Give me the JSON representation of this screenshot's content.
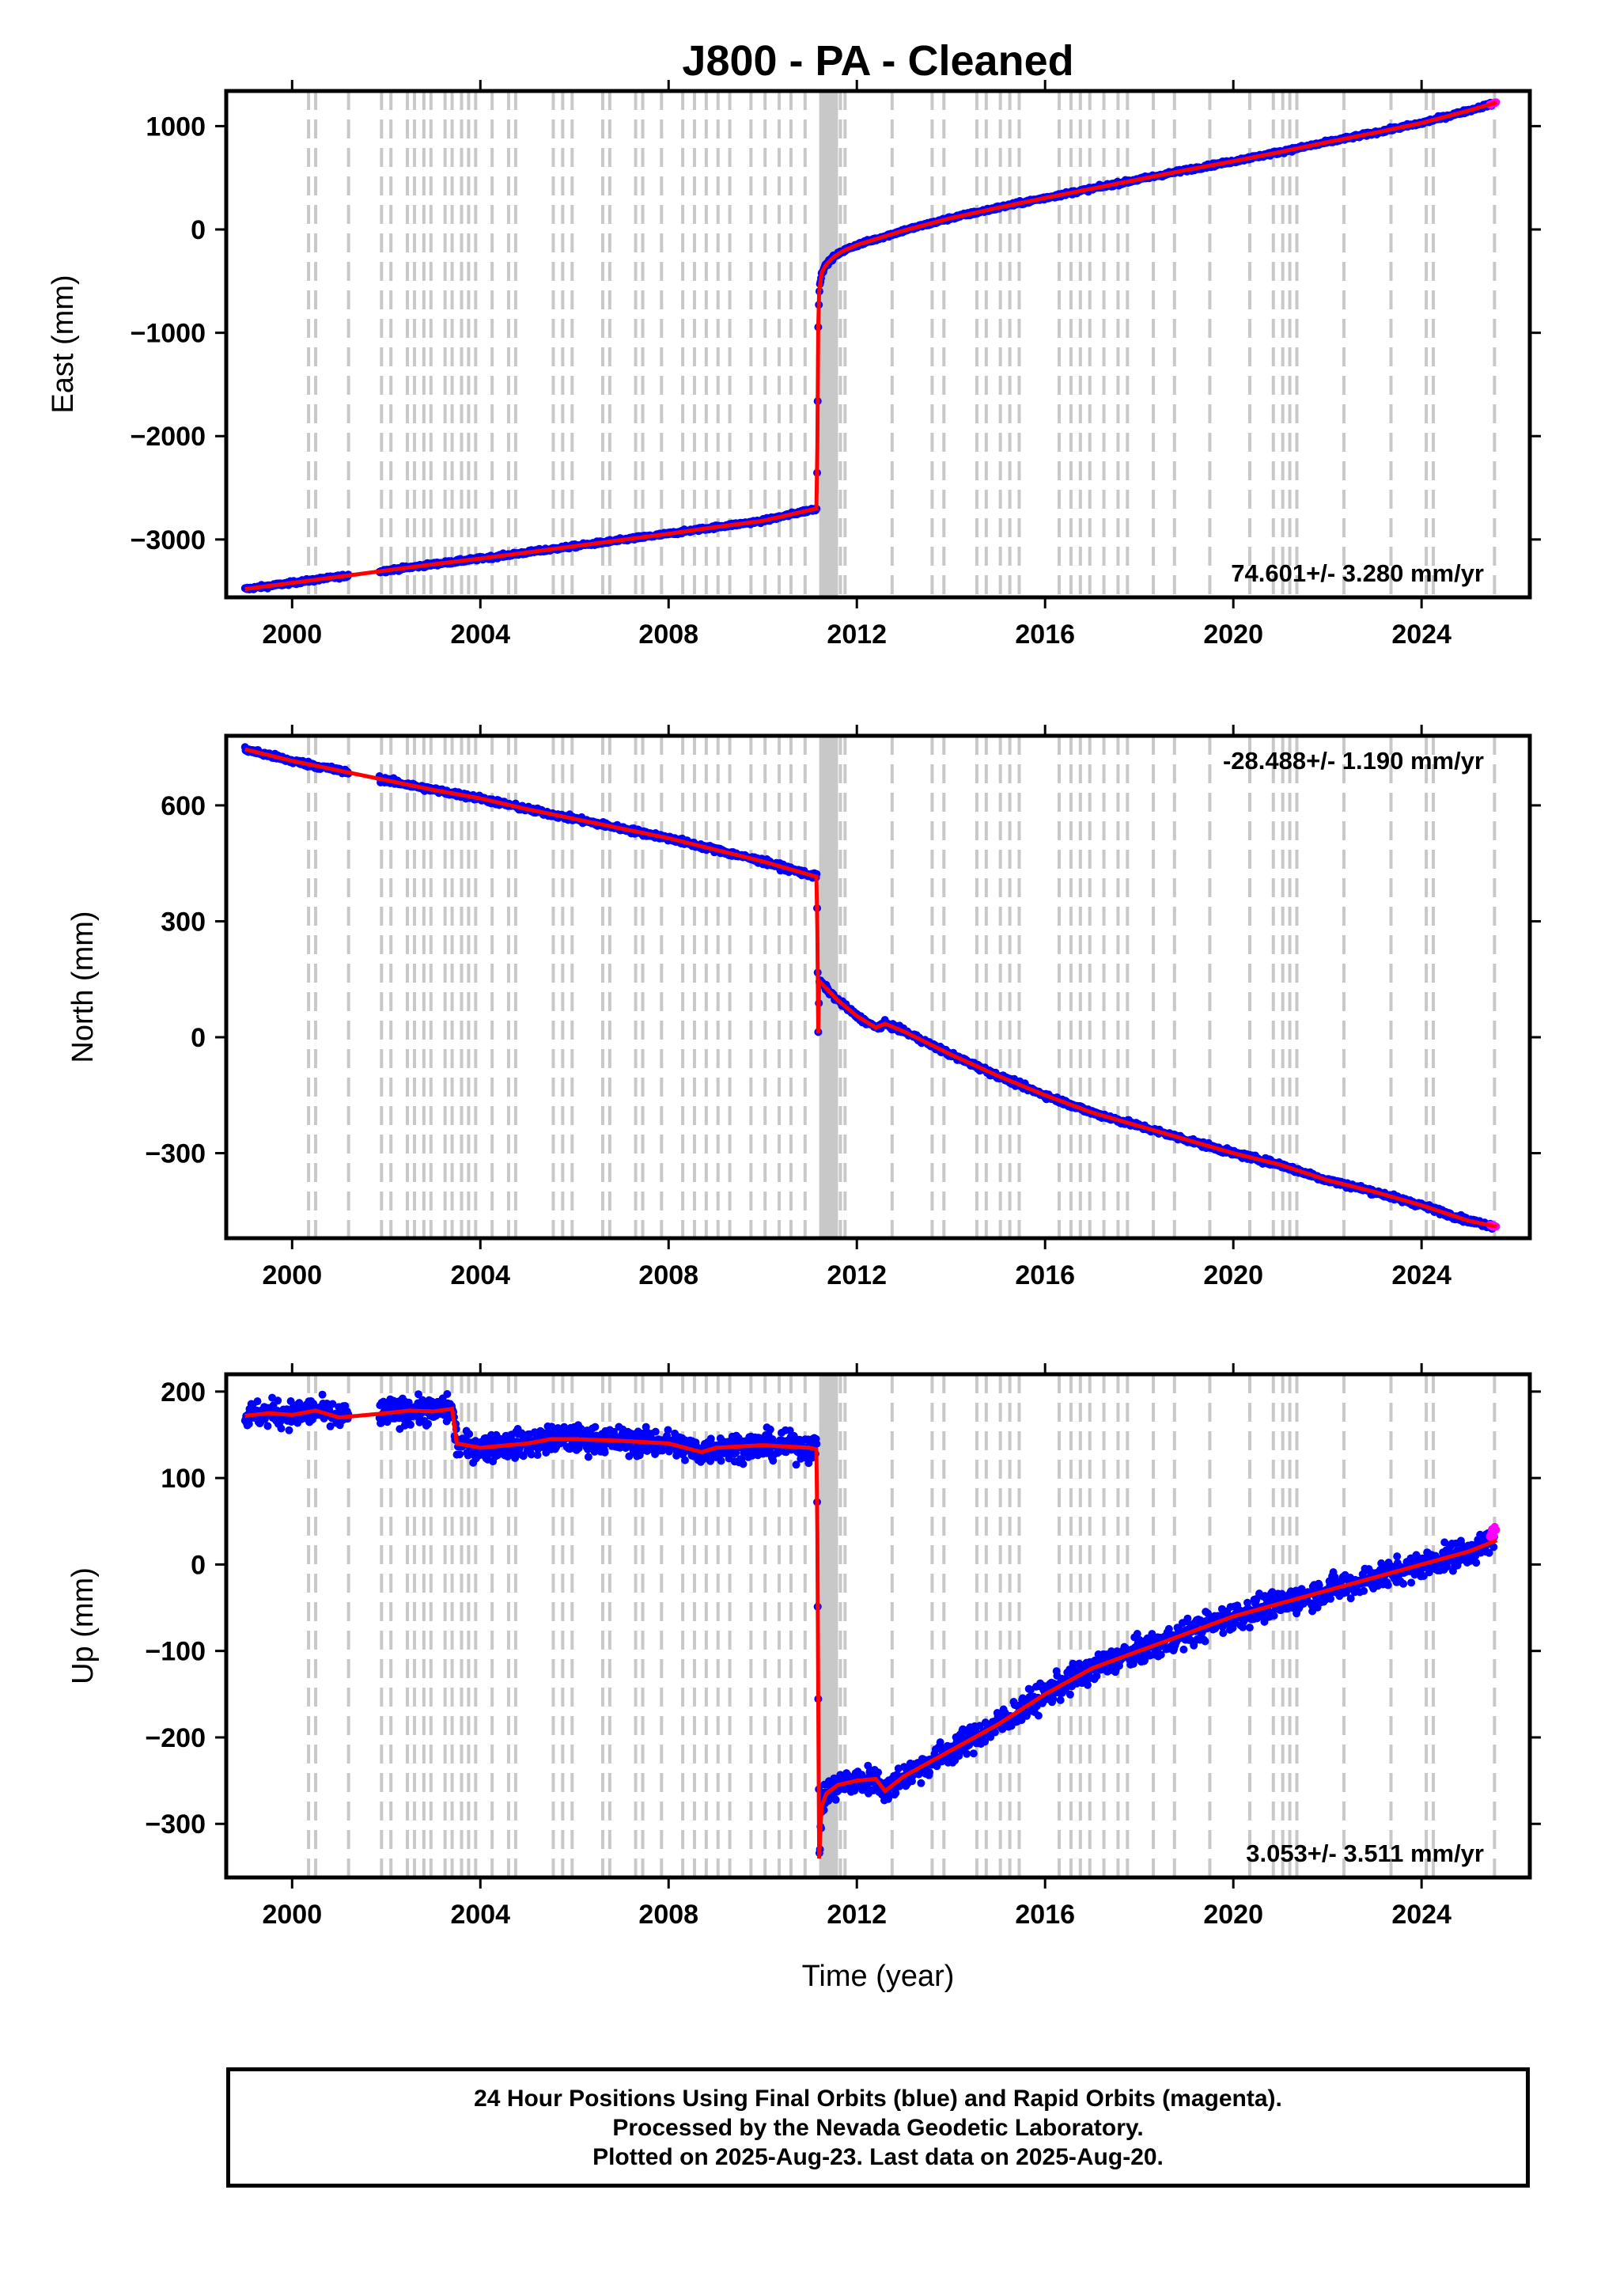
{
  "title": "J800  - PA - Cleaned",
  "xlabel": "Time (year)",
  "colors": {
    "final": "#0000ff",
    "rapid": "#ff00ff",
    "model": "#ff0000",
    "steps": "#c8c8c8"
  },
  "footer": {
    "line1": "24 Hour Positions Using Final Orbits (blue) and Rapid Orbits (magenta).",
    "line2": "Processed by the Nevada Geodetic Laboratory.",
    "line3": "Plotted on 2025-Aug-23. Last data on 2025-Aug-20."
  },
  "chart_data": [
    {
      "type": "scatter",
      "panel": "east",
      "ylabel": "East (mm)",
      "xlim": [
        1998.6,
        2026.3
      ],
      "ylim": [
        -3560,
        1340
      ],
      "x_ticks": [
        2000,
        2004,
        2008,
        2012,
        2016,
        2020,
        2024
      ],
      "y_ticks": [
        1000,
        0,
        -1000,
        -2000,
        -3000
      ],
      "y_tick_labels": [
        "1000",
        "0",
        "−1000",
        "−2000",
        "−3000"
      ],
      "rate": "74.601+/- 3.280 mm/yr",
      "rate_position": "bottom-right",
      "series": [
        {
          "x": [
            1999.0,
            2000.0,
            2001.0,
            2002.0,
            2003.0,
            2004.0,
            2005.0,
            2006.0,
            2007.0,
            2008.0,
            2009.0,
            2010.0,
            2011.15,
            2011.18,
            2011.2,
            2011.25,
            2011.35,
            2011.5,
            2011.7,
            2012.0,
            2012.5,
            2013.0,
            2014.0,
            2015.0,
            2016.0,
            2017.0,
            2018.0,
            2019.0,
            2020.0,
            2021.0,
            2022.0,
            2023.0,
            2024.0,
            2025.0,
            2025.6
          ],
          "y": [
            -3480,
            -3420,
            -3360,
            -3300,
            -3240,
            -3185,
            -3125,
            -3065,
            -3005,
            -2945,
            -2880,
            -2820,
            -2700,
            -950,
            -600,
            -420,
            -340,
            -270,
            -210,
            -150,
            -80,
            -10,
            110,
            210,
            305,
            395,
            485,
            575,
            660,
            750,
            845,
            935,
            1030,
            1150,
            1230
          ]
        }
      ]
    },
    {
      "type": "scatter",
      "panel": "north",
      "ylabel": "North (mm)",
      "xlim": [
        1998.6,
        2026.3
      ],
      "ylim": [
        -520,
        780
      ],
      "x_ticks": [
        2000,
        2004,
        2008,
        2012,
        2016,
        2020,
        2024
      ],
      "y_ticks": [
        600,
        300,
        0,
        -300
      ],
      "y_tick_labels": [
        "600",
        "300",
        "0",
        "−300"
      ],
      "rate": "-28.488+/- 1.190 mm/yr",
      "rate_position": "top-right",
      "series": [
        {
          "x": [
            1999.0,
            2000.0,
            2001.0,
            2002.0,
            2003.0,
            2004.0,
            2005.0,
            2006.0,
            2007.0,
            2008.0,
            2009.0,
            2010.0,
            2011.15,
            2011.18,
            2011.2,
            2011.25,
            2011.4,
            2011.6,
            2012.0,
            2012.4,
            2012.6,
            2013.0,
            2014.0,
            2015.0,
            2016.0,
            2017.0,
            2018.0,
            2019.0,
            2020.0,
            2021.0,
            2022.0,
            2023.0,
            2024.0,
            2025.0,
            2025.6
          ],
          "y": [
            745,
            715,
            690,
            665,
            640,
            618,
            590,
            565,
            540,
            515,
            485,
            455,
            415,
            10,
            145,
            140,
            120,
            95,
            55,
            25,
            35,
            15,
            -45,
            -100,
            -150,
            -195,
            -230,
            -265,
            -300,
            -330,
            -370,
            -400,
            -435,
            -475,
            -490
          ]
        }
      ]
    },
    {
      "type": "scatter",
      "panel": "up",
      "ylabel": "Up (mm)",
      "xlim": [
        1998.6,
        2026.3
      ],
      "ylim": [
        -362,
        220
      ],
      "x_ticks": [
        2000,
        2004,
        2008,
        2012,
        2016,
        2020,
        2024
      ],
      "y_ticks": [
        200,
        100,
        0,
        -100,
        -200,
        -300
      ],
      "y_tick_labels": [
        "200",
        "100",
        "0",
        "−100",
        "−200",
        "−300"
      ],
      "rate": "3.053+/- 3.511 mm/yr",
      "rate_position": "bottom-right",
      "series": [
        {
          "x": [
            1999.0,
            1999.5,
            2000.0,
            2000.5,
            2001.0,
            2002.0,
            2002.5,
            2003.0,
            2003.4,
            2003.5,
            2004.0,
            2005.0,
            2005.5,
            2006.0,
            2007.0,
            2008.0,
            2008.7,
            2009.0,
            2010.0,
            2011.0,
            2011.15,
            2011.2,
            2011.25,
            2011.35,
            2011.6,
            2012.0,
            2012.4,
            2012.6,
            2013.0,
            2014.0,
            2015.0,
            2016.0,
            2017.0,
            2018.0,
            2019.0,
            2020.0,
            2021.0,
            2022.0,
            2023.0,
            2024.0,
            2025.0,
            2025.6
          ],
          "y": [
            172,
            175,
            173,
            178,
            170,
            175,
            178,
            177,
            180,
            140,
            135,
            140,
            145,
            145,
            143,
            140,
            130,
            135,
            138,
            135,
            133,
            -340,
            -280,
            -265,
            -255,
            -250,
            -248,
            -262,
            -245,
            -215,
            -185,
            -150,
            -120,
            -100,
            -80,
            -60,
            -45,
            -30,
            -15,
            0,
            15,
            28
          ]
        }
      ]
    }
  ]
}
